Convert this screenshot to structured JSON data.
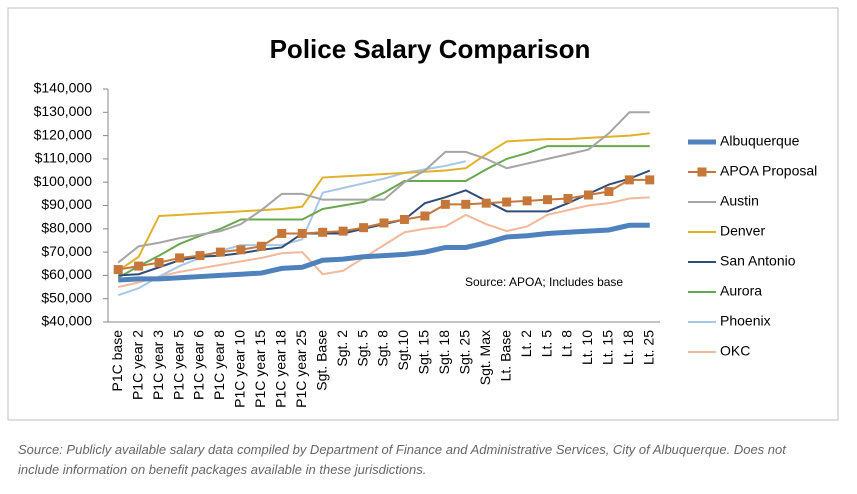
{
  "chart_data": {
    "type": "line",
    "title": "Police Salary Comparison",
    "categories": [
      "P1C base",
      "P1C year 2",
      "P1C year 3",
      "P1C year 5",
      "P1C year 6",
      "P1C year 8",
      "P1C year 10",
      "P1C year 15",
      "P1C year 18",
      "P1C year 25",
      "Sgt. Base",
      "Sgt. 2",
      "Sgt. 5",
      "Sgt. 8",
      "Sgt.10",
      "Sgt. 15",
      "Sgt. 18",
      "Sgt. 25",
      "Sgt. Max",
      "Lt. Base",
      "Lt. 2",
      "Lt. 5",
      "Lt. 8",
      "Lt. 10",
      "Lt. 15",
      "Lt. 18",
      "Lt. 25"
    ],
    "series": [
      {
        "name": "Albuquerque",
        "color": "#4f81bd",
        "values": [
          58000,
          58500,
          58500,
          59000,
          59500,
          60000,
          60500,
          61000,
          63000,
          63500,
          66500,
          67000,
          68000,
          68500,
          69000,
          70000,
          72000,
          72000,
          74000,
          76500,
          77000,
          78000,
          78500,
          79000,
          79500,
          81500,
          81500
        ]
      },
      {
        "name": "APOA Proposal",
        "color": "#c5773a",
        "values": [
          62500,
          64000,
          65500,
          67500,
          68500,
          70000,
          71000,
          72500,
          78000,
          78000,
          78500,
          79000,
          80500,
          82500,
          84000,
          85500,
          90500,
          90500,
          91000,
          91500,
          92000,
          92500,
          93000,
          94500,
          96000,
          101000,
          101000
        ]
      },
      {
        "name": "Austin",
        "color": "#a5a5a5",
        "values": [
          65500,
          72500,
          74000,
          76000,
          77500,
          79000,
          82000,
          88000,
          95000,
          95000,
          92500,
          92500,
          92500,
          92500,
          100000,
          105000,
          113000,
          113000,
          110000,
          106000,
          108000,
          110000,
          112000,
          114000,
          121000,
          130000,
          130000
        ]
      },
      {
        "name": "Denver",
        "color": "#e0b12a",
        "values": [
          62000,
          68000,
          85500,
          86000,
          86500,
          87000,
          87500,
          88000,
          88500,
          89500,
          102000,
          102500,
          103000,
          103500,
          104000,
          104500,
          105000,
          106000,
          112000,
          117500,
          118000,
          118500,
          118500,
          119000,
          119500,
          120000,
          121000
        ]
      },
      {
        "name": "San Antonio",
        "color": "#2f4d7a",
        "values": [
          60000,
          60500,
          63500,
          66500,
          68000,
          68500,
          69500,
          71000,
          72000,
          78000,
          78000,
          78000,
          80000,
          82000,
          84000,
          91000,
          93500,
          96500,
          92000,
          87500,
          87500,
          87500,
          91000,
          95000,
          99000,
          101500,
          105000
        ]
      },
      {
        "name": "Aurora",
        "color": "#6aa84f",
        "values": [
          59000,
          64000,
          68500,
          73500,
          77000,
          80000,
          84000,
          84000,
          84000,
          84000,
          88500,
          90000,
          91500,
          95500,
          100500,
          100500,
          100500,
          100500,
          105500,
          110000,
          112500,
          115500,
          115500,
          115500,
          115500,
          115500,
          115500
        ]
      },
      {
        "name": "Phoenix",
        "color": "#a9c6e8",
        "values": [
          51500,
          54500,
          59500,
          64000,
          67500,
          70500,
          73000,
          73000,
          73000,
          75500,
          95500,
          97500,
          99500,
          101500,
          104000,
          105500,
          107000,
          109000,
          null,
          null,
          null,
          null,
          null,
          null,
          null,
          null,
          null
        ]
      },
      {
        "name": "OKC",
        "color": "#f2b89a",
        "values": [
          55000,
          57000,
          59500,
          61500,
          63000,
          64500,
          66000,
          67500,
          69500,
          70000,
          60500,
          62000,
          67500,
          73000,
          78500,
          80000,
          81000,
          86000,
          82000,
          79000,
          81000,
          86000,
          88000,
          90000,
          91000,
          93000,
          93500
        ]
      }
    ],
    "ylim": [
      40000,
      140000
    ],
    "yticks": [
      {
        "value": 40000,
        "label": "$40,000"
      },
      {
        "value": 50000,
        "label": "$50,000"
      },
      {
        "value": 60000,
        "label": "$60,000"
      },
      {
        "value": 70000,
        "label": "$70,000"
      },
      {
        "value": 80000,
        "label": "$80,000"
      },
      {
        "value": 90000,
        "label": "$90,000"
      },
      {
        "value": 100000,
        "label": "$100,000"
      },
      {
        "value": 110000,
        "label": "$110,000"
      },
      {
        "value": 120000,
        "label": "$120,000"
      },
      {
        "value": 130000,
        "label": "$130,000"
      },
      {
        "value": 140000,
        "label": "$140,000"
      }
    ],
    "annotation": "Source: APOA; Includes base",
    "footnote": "Source: Publicly available salary data compiled by Department of Finance and Administrative Services, City of Albuquerque. Does not include information on benefit packages available in these jurisdictions."
  }
}
